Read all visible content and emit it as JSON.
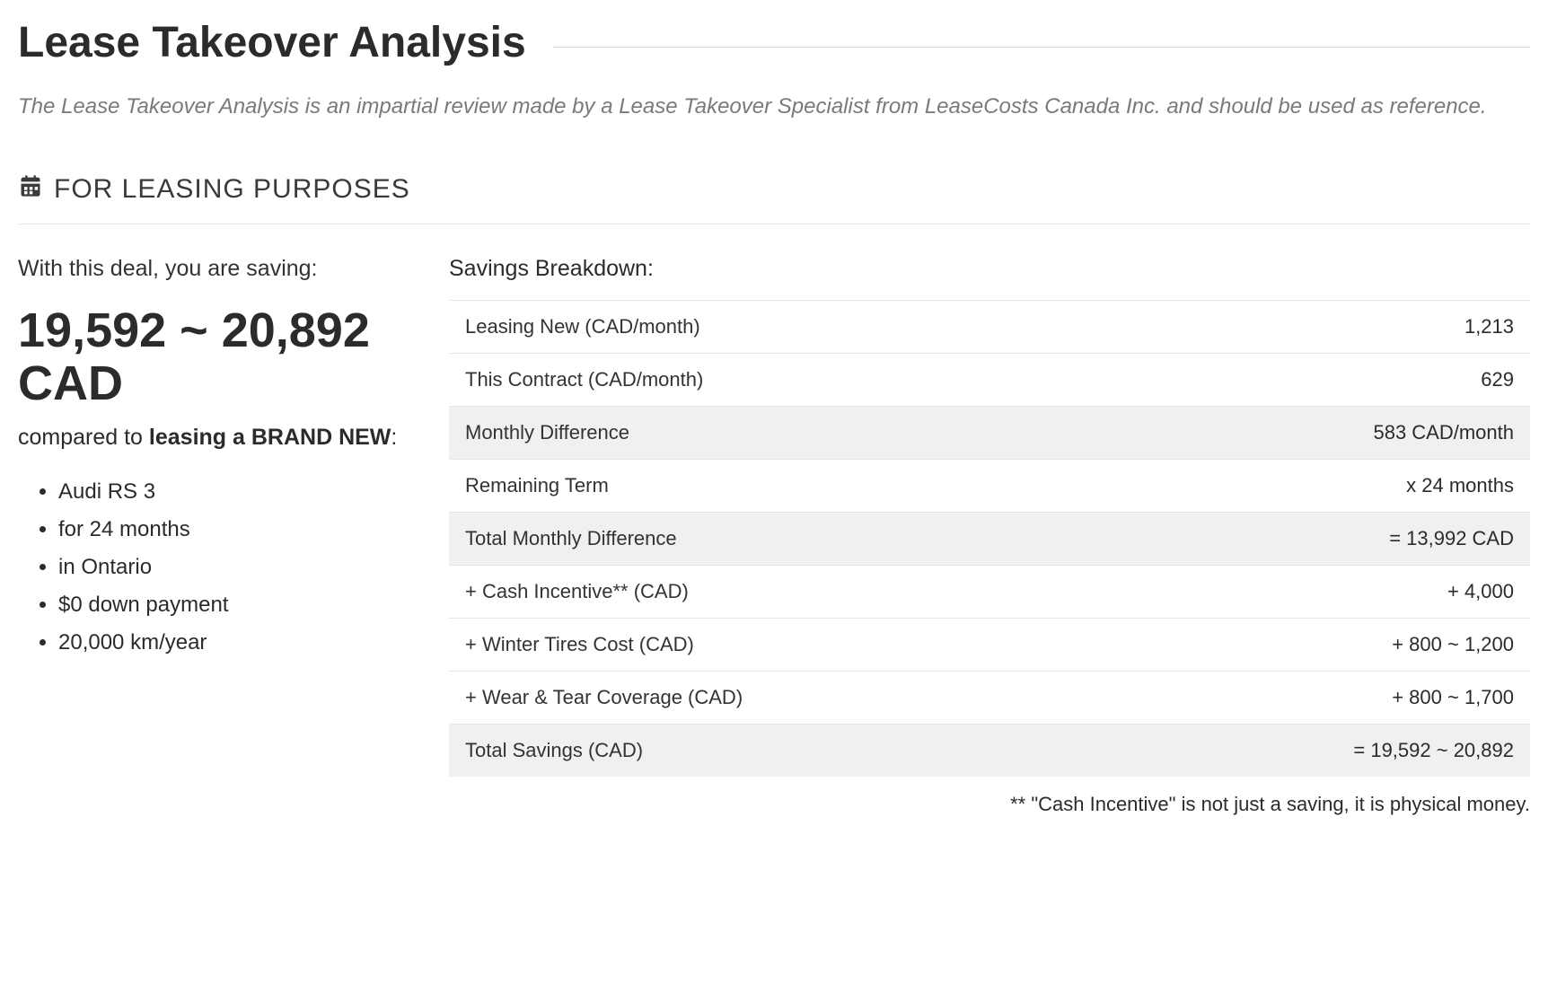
{
  "page": {
    "title": "Lease Takeover Analysis",
    "subtitle": "The Lease Takeover Analysis is an impartial review made by a Lease Takeover Specialist from LeaseCosts Canada Inc. and should be used as reference."
  },
  "section": {
    "icon_name": "calendar-icon",
    "label": "FOR LEASING PURPOSES"
  },
  "left": {
    "intro": "With this deal, you are saving:",
    "amount_line1": "19,592 ~ 20,892",
    "amount_line2": "CAD",
    "compared_prefix": "compared to ",
    "compared_bold": "leasing a BRAND NEW",
    "compared_suffix": ":",
    "bullets": [
      "Audi RS 3",
      "for 24 months",
      "in Ontario",
      "$0 down payment",
      "20,000 km/year"
    ]
  },
  "right": {
    "title": "Savings Breakdown:",
    "rows": [
      {
        "label": "Leasing New (CAD/month)",
        "value": "1,213",
        "shade": false
      },
      {
        "label": "This Contract (CAD/month)",
        "value": "629",
        "shade": false
      },
      {
        "label": "Monthly Difference",
        "value": "583 CAD/month",
        "shade": true
      },
      {
        "label": "Remaining Term",
        "value": "x 24 months",
        "shade": false
      },
      {
        "label": "Total Monthly Difference",
        "value": "= 13,992 CAD",
        "shade": true
      },
      {
        "label": "+ Cash Incentive** (CAD)",
        "value": "+ 4,000",
        "shade": false
      },
      {
        "label": "+ Winter Tires Cost (CAD)",
        "value": "+ 800 ~ 1,200",
        "shade": false
      },
      {
        "label": "+ Wear & Tear Coverage (CAD)",
        "value": "+ 800 ~ 1,700",
        "shade": false
      },
      {
        "label": "Total Savings (CAD)",
        "value": "= 19,592 ~ 20,892",
        "shade": true
      }
    ],
    "footnote": "** \"Cash Incentive\" is not just a saving, it is physical money."
  }
}
